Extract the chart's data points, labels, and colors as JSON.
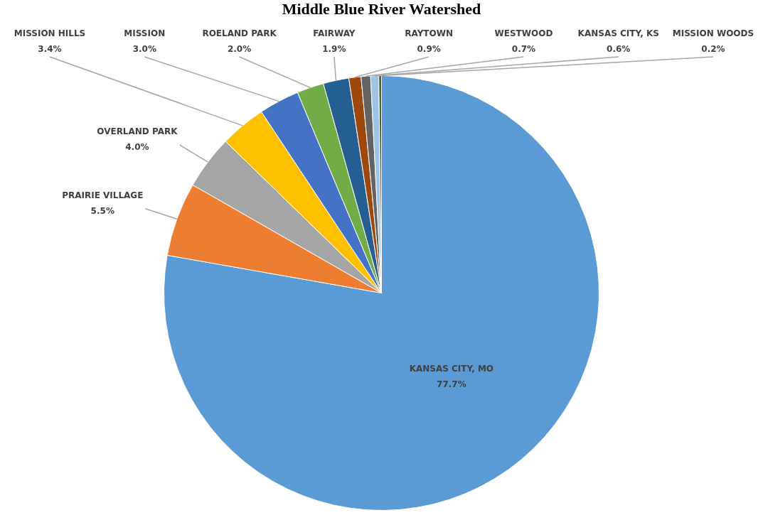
{
  "chart_data": {
    "type": "pie",
    "title": "Middle Blue River Watershed",
    "categories": [
      "KANSAS CITY, MO",
      "PRAIRIE VILLAGE",
      "OVERLAND PARK",
      "MISSION HILLS",
      "MISSION",
      "ROELAND PARK",
      "FAIRWAY",
      "RAYTOWN",
      "WESTWOOD",
      "KANSAS CITY, KS",
      "MISSION WOODS"
    ],
    "values": [
      77.7,
      5.5,
      4.0,
      3.4,
      3.0,
      2.0,
      1.9,
      0.9,
      0.7,
      0.6,
      0.2
    ],
    "value_labels": [
      "77.7%",
      "5.5%",
      "4.0%",
      "3.4%",
      "3.0%",
      "2.0%",
      "1.9%",
      "0.9%",
      "0.7%",
      "0.6%",
      "0.2%"
    ],
    "colors": [
      "#5b9bd5",
      "#ed7d31",
      "#a5a5a5",
      "#ffc000",
      "#4472c4",
      "#70ad47",
      "#255e91",
      "#9e480e",
      "#636363",
      "#9dc3e6",
      "#43682b"
    ],
    "legend": false
  }
}
